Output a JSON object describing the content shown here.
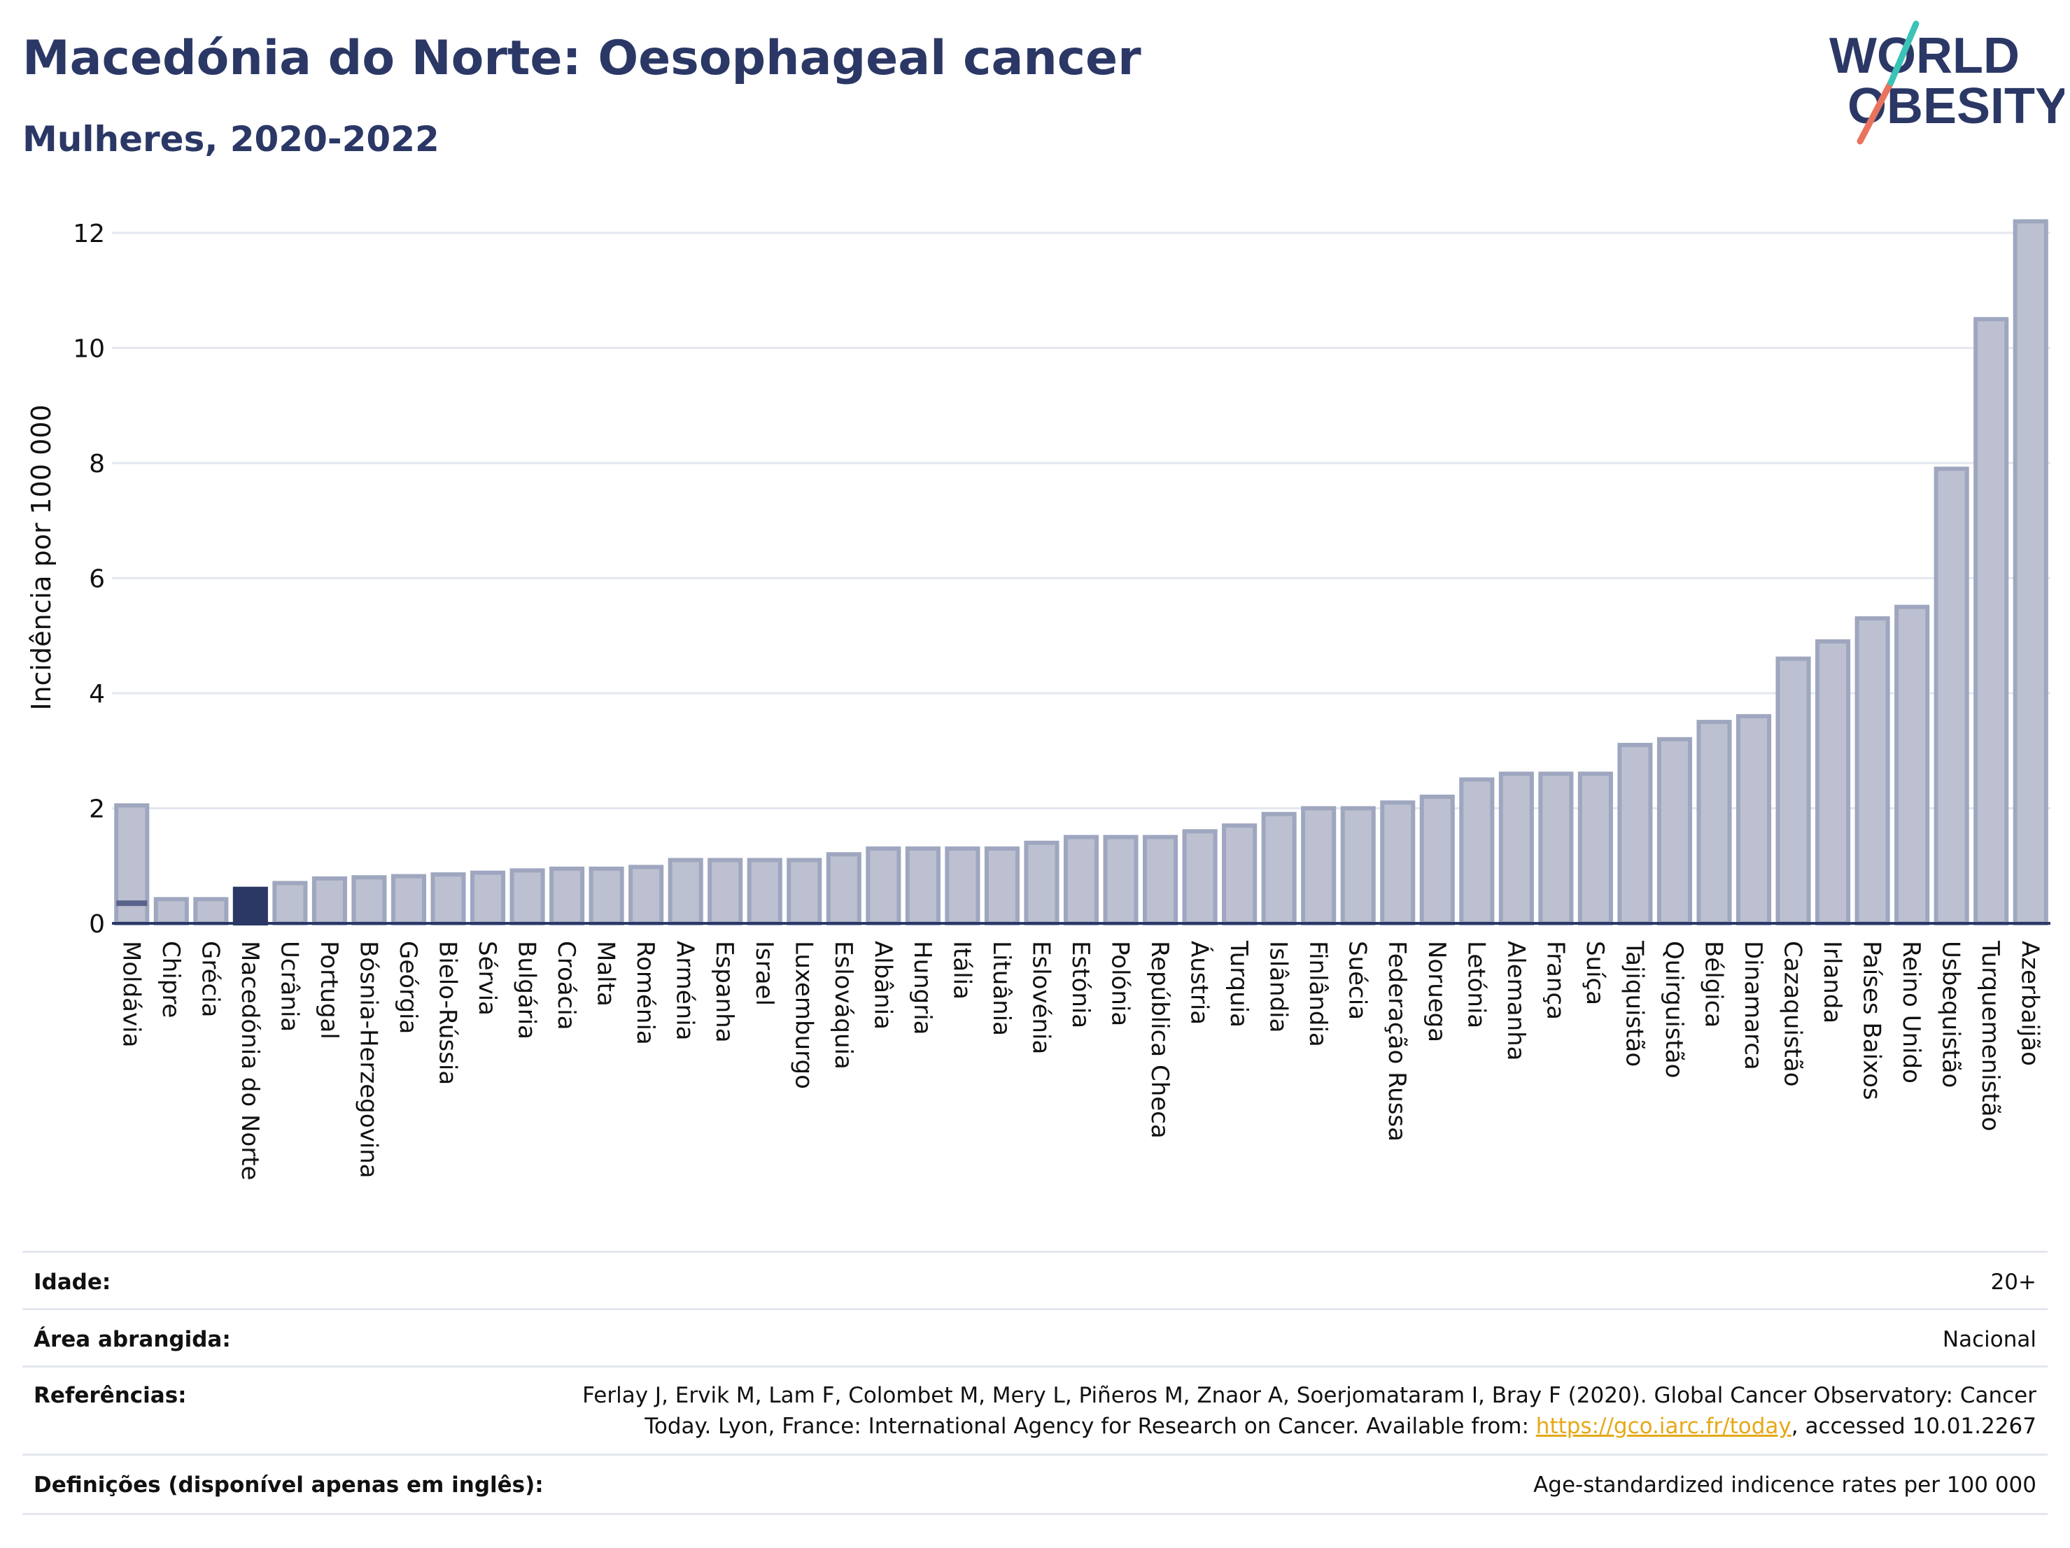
{
  "header": {
    "title": "Macedónia do Norte: Oesophageal cancer",
    "subtitle": "Mulheres, 2020-2022"
  },
  "logo": {
    "line1": "WORLD",
    "line2": "OBESITY"
  },
  "colors": {
    "bar": "#bcc0d0",
    "bar_border": "#9fa6bf",
    "highlight": "#2b3866",
    "title": "#2b3866",
    "link": "#e6a817"
  },
  "chart_data": {
    "type": "bar",
    "ylabel": "Incidência por 100 000",
    "ylim": [
      0,
      12.4
    ],
    "yticks": [
      0,
      2,
      4,
      6,
      8,
      10,
      12
    ],
    "grid": true,
    "highlight": "Macedónia do Norte",
    "categories": [
      "Moldávia",
      "Chipre",
      "Grécia",
      "Macedónia do Norte",
      "Ucrânia",
      "Portugal",
      "Bósnia-Herzegovina",
      "Geórgia",
      "Bielo-Rússia",
      "Sérvia",
      "Bulgária",
      "Croácia",
      "Malta",
      "Roménia",
      "Arménia",
      "Espanha",
      "Israel",
      "Luxemburgo",
      "Eslováquia",
      "Albânia",
      "Hungria",
      "Itália",
      "Lituânia",
      "Eslovénia",
      "Estónia",
      "Polónia",
      "República Checa",
      "Áustria",
      "Turquia",
      "Islândia",
      "Finlândia",
      "Suécia",
      "Federação Russa",
      "Noruega",
      "Letónia",
      "Alemanha",
      "França",
      "Suíça",
      "Tajiquistão",
      "Quirguistão",
      "Bélgica",
      "Dinamarca",
      "Cazaquistão",
      "Irlanda",
      "Países Baixos",
      "Reino Unido",
      "Usbequistão",
      "Turquemenistão",
      "Azerbaijão"
    ],
    "values": [
      2.05,
      0.42,
      0.42,
      0.6,
      0.7,
      0.78,
      0.8,
      0.82,
      0.85,
      0.88,
      0.92,
      0.95,
      0.95,
      0.98,
      1.1,
      1.1,
      1.1,
      1.1,
      1.2,
      1.3,
      1.3,
      1.3,
      1.3,
      1.4,
      1.5,
      1.5,
      1.5,
      1.6,
      1.7,
      1.9,
      2.0,
      2.0,
      2.1,
      2.2,
      2.5,
      2.6,
      2.6,
      2.6,
      3.1,
      3.2,
      3.5,
      3.6,
      4.6,
      4.9,
      5.3,
      5.5,
      7.9,
      10.5,
      12.2
    ],
    "markers": [
      {
        "category": "Moldávia",
        "value": 0.35
      }
    ]
  },
  "meta": {
    "age_label": "Idade:",
    "age_value": "20+",
    "area_label": "Área abrangida:",
    "area_value": "Nacional",
    "ref_label": "Referências:",
    "ref_line1": "Ferlay J, Ervik M, Lam F, Colombet M, Mery L, Piñeros M, Znaor A, Soerjomataram I, Bray F (2020). Global Cancer Observatory: Cancer",
    "ref_line2_pre": "Today. Lyon, France: International Agency for Research on Cancer. Available from: ",
    "ref_link": "https://gco.iarc.fr/today",
    "ref_line2_post": ", accessed 10.01.2267",
    "def_label": "Definições (disponível apenas em inglês):",
    "def_value": "Age-standardized indicence rates per 100 000"
  }
}
